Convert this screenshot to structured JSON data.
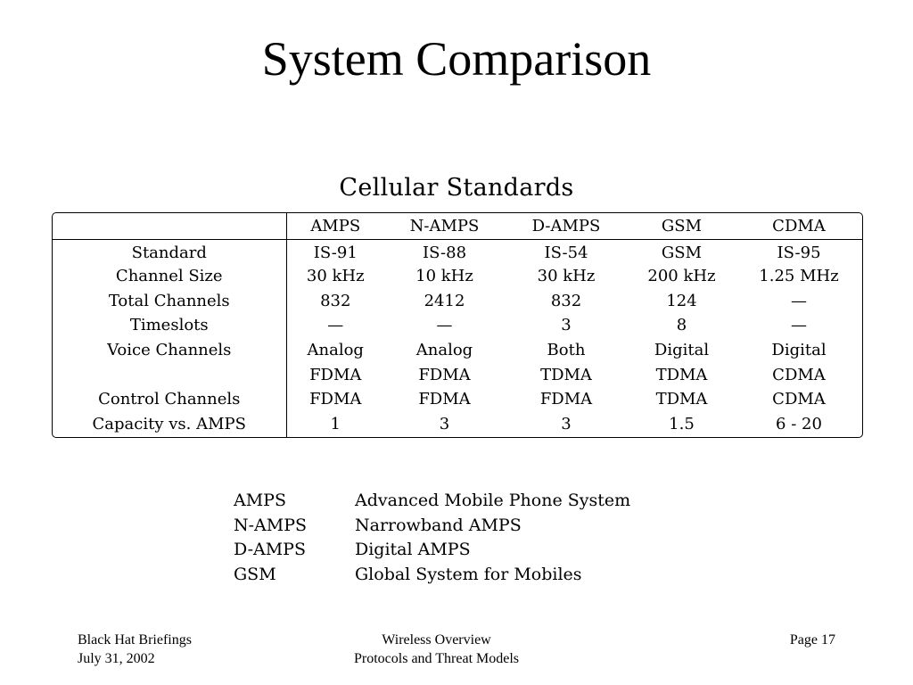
{
  "slide": {
    "title": "System Comparison",
    "subtitle": "Cellular Standards"
  },
  "table": {
    "columns": [
      "",
      "AMPS",
      "N-AMPS",
      "D-AMPS",
      "GSM",
      "CDMA"
    ],
    "rows": [
      {
        "label": "Standard",
        "values": [
          "IS-91",
          "IS-88",
          "IS-54",
          "GSM",
          "IS-95"
        ]
      },
      {
        "label": "Channel Size",
        "values": [
          "30 kHz",
          "10 kHz",
          "30 kHz",
          "200 kHz",
          "1.25 MHz"
        ]
      },
      {
        "label": "Total Channels",
        "values": [
          "832",
          "2412",
          "832",
          "124",
          "—"
        ]
      },
      {
        "label": "Timeslots",
        "values": [
          "—",
          "—",
          "3",
          "8",
          "—"
        ]
      },
      {
        "label": "Voice Channels",
        "values": [
          "Analog",
          "Analog",
          "Both",
          "Digital",
          "Digital"
        ]
      },
      {
        "label": "",
        "values": [
          "FDMA",
          "FDMA",
          "TDMA",
          "TDMA",
          "CDMA"
        ]
      },
      {
        "label": "Control Channels",
        "values": [
          "FDMA",
          "FDMA",
          "FDMA",
          "TDMA",
          "CDMA"
        ]
      },
      {
        "label": "Capacity vs.  AMPS",
        "values": [
          "1",
          "3",
          "3",
          "1.5",
          "6 - 20"
        ]
      }
    ]
  },
  "abbreviations": [
    {
      "key": "AMPS",
      "value": "Advanced Mobile Phone System"
    },
    {
      "key": "N-AMPS",
      "value": "Narrowband AMPS"
    },
    {
      "key": "D-AMPS",
      "value": "Digital AMPS"
    },
    {
      "key": "GSM",
      "value": "Global System for Mobiles"
    }
  ],
  "footer": {
    "left": [
      "Black Hat Briefings",
      "July 31, 2002"
    ],
    "center": [
      "Wireless Overview",
      "Protocols and Threat Models"
    ],
    "right": [
      "Page 17"
    ]
  }
}
